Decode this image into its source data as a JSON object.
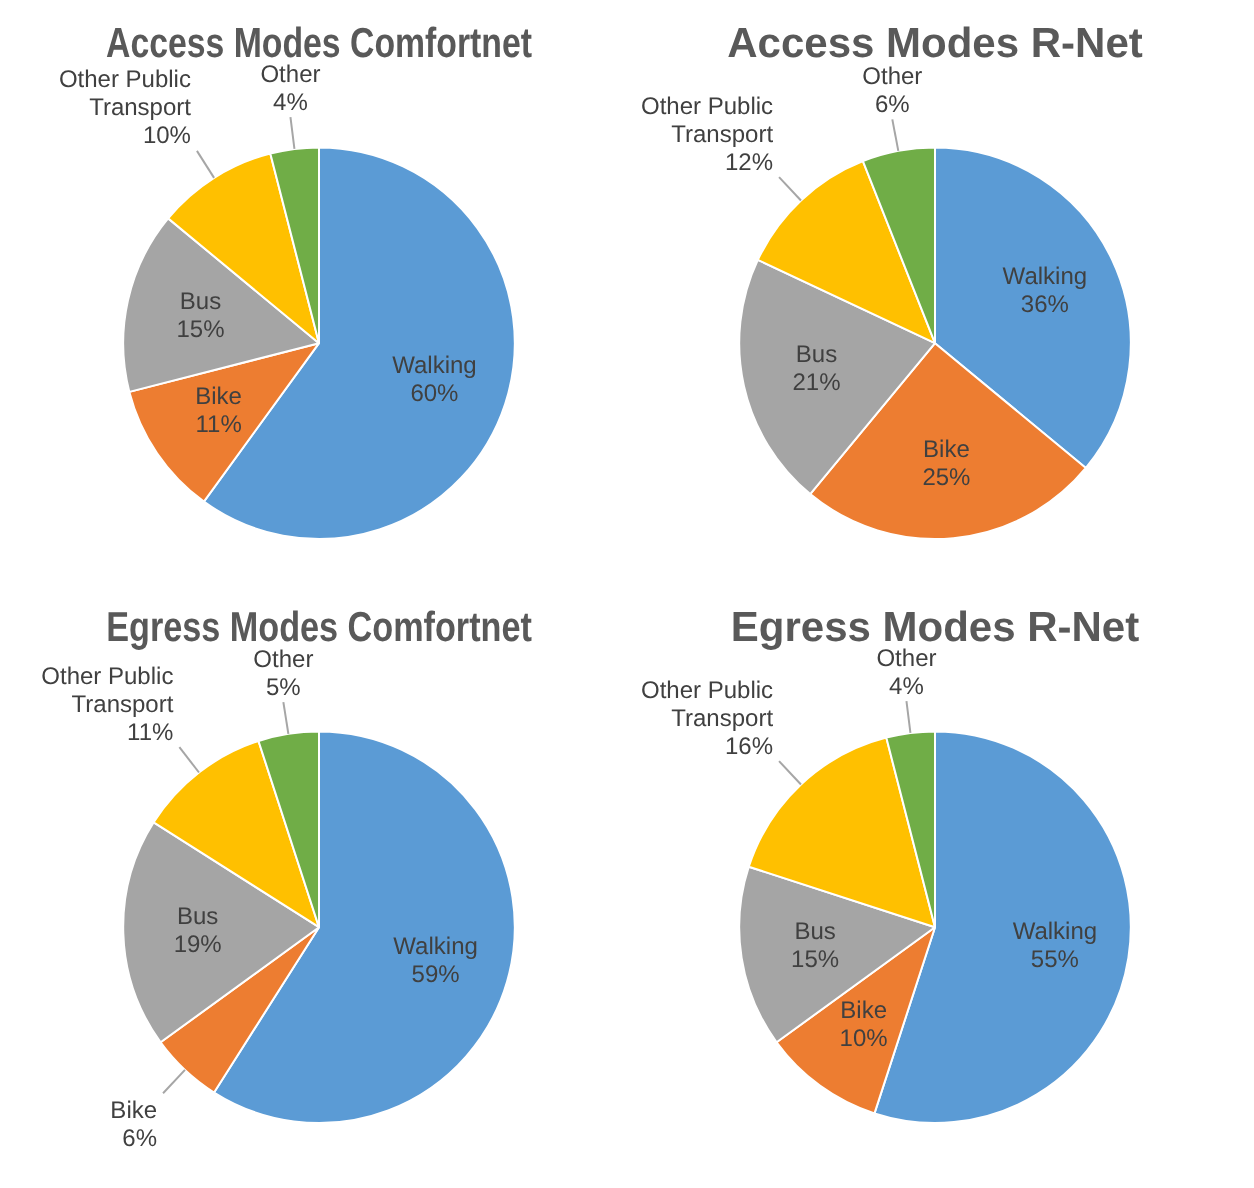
{
  "chart_data": [
    {
      "type": "pie",
      "title": "Access Modes Comfortnet",
      "categories": [
        "Walking",
        "Bike",
        "Bus",
        "Other Public Transport",
        "Other"
      ],
      "values": [
        60,
        11,
        15,
        10,
        4
      ],
      "value_labels": [
        "60%",
        "11%",
        "15%",
        "10%",
        "4%"
      ],
      "colors": [
        "#5b9bd5",
        "#ed7d31",
        "#a5a5a5",
        "#ffc000",
        "#70ad47"
      ],
      "legend": false
    },
    {
      "type": "pie",
      "title": "Access Modes R-Net",
      "categories": [
        "Walking",
        "Bike",
        "Bus",
        "Other Public Transport",
        "Other"
      ],
      "values": [
        36,
        25,
        21,
        12,
        6
      ],
      "value_labels": [
        "36%",
        "25%",
        "21%",
        "12%",
        "6%"
      ],
      "colors": [
        "#5b9bd5",
        "#ed7d31",
        "#a5a5a5",
        "#ffc000",
        "#70ad47"
      ],
      "legend": false
    },
    {
      "type": "pie",
      "title": "Egress Modes Comfortnet",
      "categories": [
        "Walking",
        "Bike",
        "Bus",
        "Other Public Transport",
        "Other"
      ],
      "values": [
        59,
        6,
        19,
        11,
        5
      ],
      "value_labels": [
        "59%",
        "6%",
        "19%",
        "11%",
        "5%"
      ],
      "colors": [
        "#5b9bd5",
        "#ed7d31",
        "#a5a5a5",
        "#ffc000",
        "#70ad47"
      ],
      "legend": false
    },
    {
      "type": "pie",
      "title": "Egress Modes R-Net",
      "categories": [
        "Walking",
        "Bike",
        "Bus",
        "Other Public Transport",
        "Other"
      ],
      "values": [
        55,
        10,
        15,
        16,
        4
      ],
      "value_labels": [
        "55%",
        "10%",
        "15%",
        "16%",
        "4%"
      ],
      "colors": [
        "#5b9bd5",
        "#ed7d31",
        "#a5a5a5",
        "#ffc000",
        "#70ad47"
      ],
      "legend": false
    }
  ]
}
